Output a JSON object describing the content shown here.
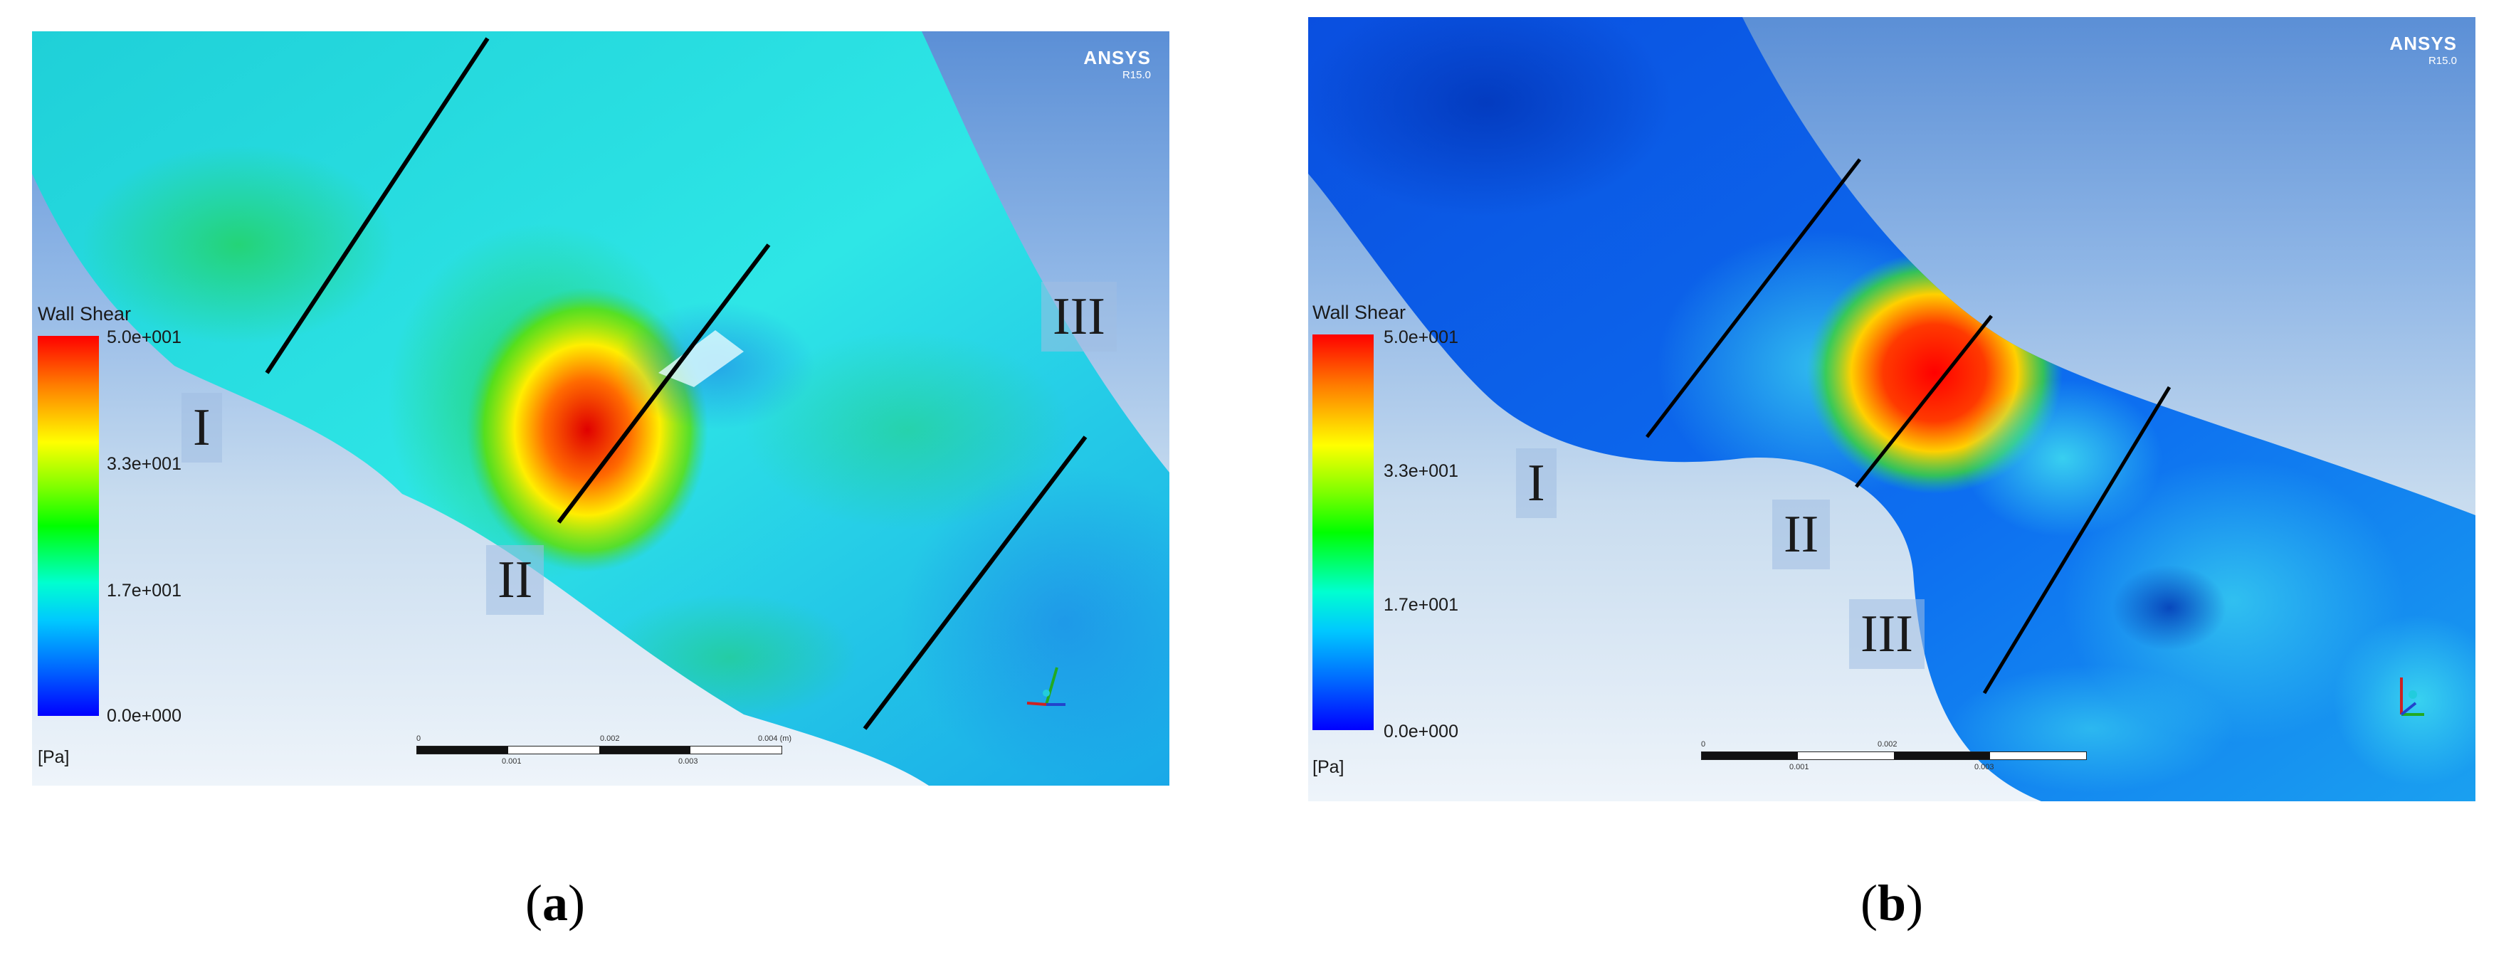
{
  "panels": [
    {
      "id": "a",
      "caption_letter": "a",
      "logo": {
        "name": "ANSYS",
        "version": "R15.0"
      },
      "legend": {
        "title": "Wall Shear",
        "ticks": [
          "5.0e+001",
          "3.3e+001",
          "1.7e+001",
          "0.0e+000"
        ],
        "unit": "[Pa]",
        "colors": [
          "#ff0000",
          "#ffff00",
          "#00ff00",
          "#00ffd0",
          "#0000ff"
        ]
      },
      "scalebar": {
        "top_labels": [
          "0",
          "0.002",
          "0.004 (m)"
        ],
        "bottom_labels": [
          "0.001",
          "0.003"
        ]
      },
      "regions": [
        "I",
        "II",
        "III"
      ]
    },
    {
      "id": "b",
      "caption_letter": "b",
      "logo": {
        "name": "ANSYS",
        "version": "R15.0"
      },
      "legend": {
        "title": "Wall Shear",
        "ticks": [
          "5.0e+001",
          "3.3e+001",
          "1.7e+001",
          "0.0e+000"
        ],
        "unit": "[Pa]",
        "colors": [
          "#ff0000",
          "#ffff00",
          "#00ff00",
          "#00ffd0",
          "#0000ff"
        ]
      },
      "scalebar": {
        "top_labels": [
          "0",
          "0.002"
        ],
        "bottom_labels": [
          "0.001",
          "0.003"
        ]
      },
      "regions": [
        "I",
        "II",
        "III"
      ]
    }
  ]
}
